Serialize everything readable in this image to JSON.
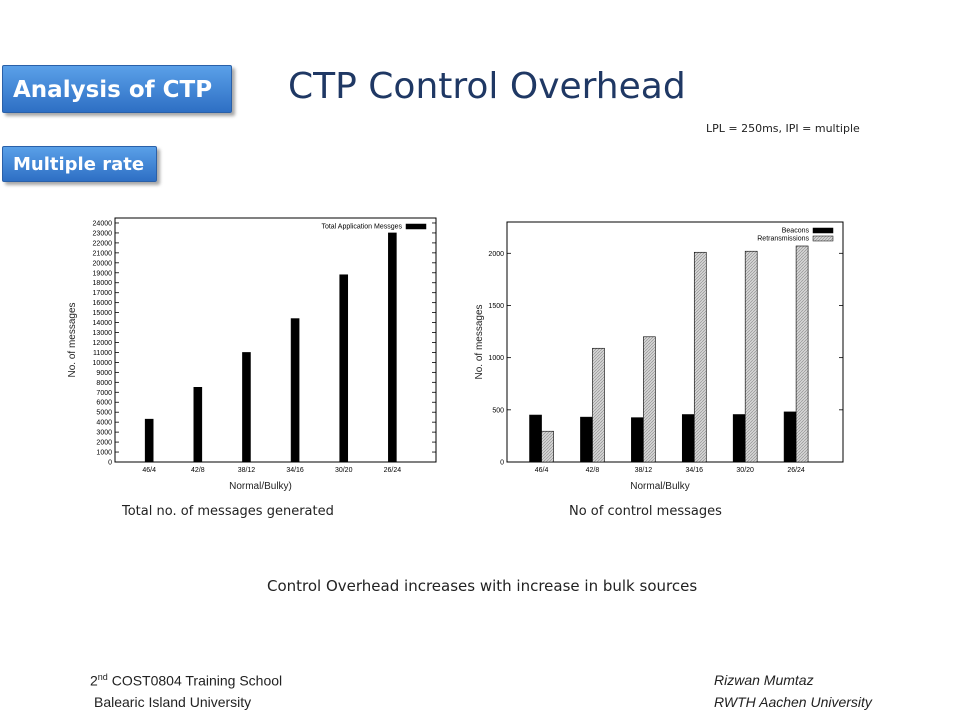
{
  "section_tag": "Analysis of CTP",
  "subsection_tag": "Multiple rate",
  "title": "CTP Control Overhead",
  "params": "LPL = 250ms, IPI = multiple",
  "conclusion": "Control Overhead increases with increase in bulk sources",
  "footer": {
    "left_line1_prefix": "2",
    "left_line1_sup": "nd",
    "left_line1_rest": " COST0804 Training School",
    "left_line2": "Balearic Island University",
    "right_line1": "Rizwan Mumtaz",
    "right_line2": "RWTH Aachen University"
  },
  "chart_data": [
    {
      "type": "bar",
      "caption": "Total no. of messages generated",
      "xlabel": "Normal/Bulky)",
      "ylabel": "No. of messages",
      "categories": [
        "46/4",
        "42/8",
        "38/12",
        "34/16",
        "30/20",
        "26/24"
      ],
      "series": [
        {
          "name": "Total Application Messges",
          "color": "#000000",
          "values": [
            4300,
            7500,
            11000,
            14400,
            18800,
            23000
          ]
        }
      ],
      "ylim": [
        0,
        24500
      ],
      "yticks": [
        0,
        1000,
        2000,
        3000,
        4000,
        5000,
        6000,
        7000,
        8000,
        9000,
        10000,
        11000,
        12000,
        13000,
        14000,
        15000,
        16000,
        17000,
        18000,
        19000,
        20000,
        21000,
        22000,
        23000,
        24000
      ],
      "legend": "top-right",
      "grid": false
    },
    {
      "type": "bar",
      "caption": "No of control messages",
      "xlabel": "Normal/Bulky",
      "ylabel": "No. of messages",
      "categories": [
        "46/4",
        "42/8",
        "38/12",
        "34/16",
        "30/20",
        "26/24"
      ],
      "series": [
        {
          "name": "Beacons",
          "color": "#000000",
          "values": [
            450,
            430,
            425,
            455,
            455,
            480
          ]
        },
        {
          "name": "Retransmissions",
          "color": "#bbbbbb",
          "values": [
            295,
            1090,
            1200,
            2010,
            2020,
            2070
          ]
        }
      ],
      "ylim": [
        0,
        2300
      ],
      "yticks": [
        0,
        500,
        1000,
        1500,
        2000
      ],
      "legend": "top-right",
      "grid": false
    }
  ]
}
